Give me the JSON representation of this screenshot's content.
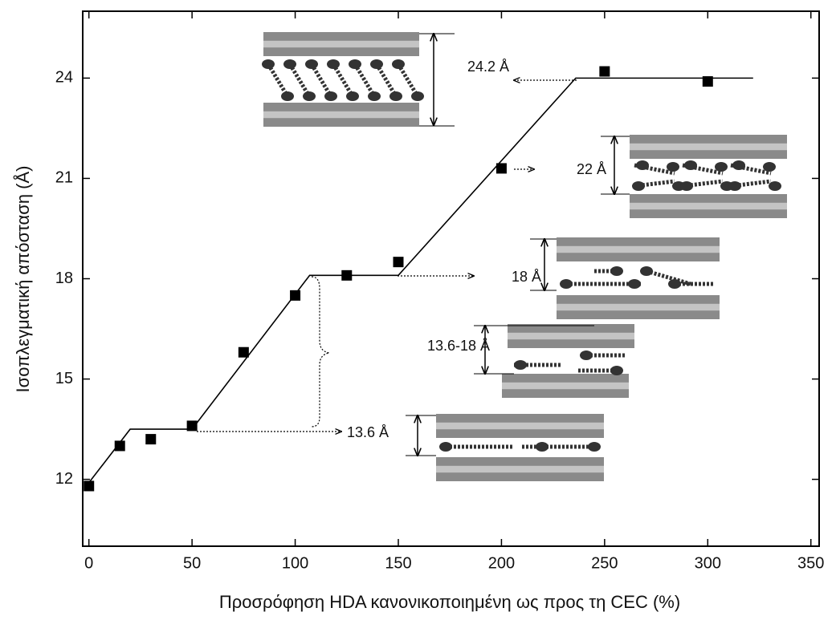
{
  "chart_data": {
    "type": "scatter",
    "xlabel": "Προσρόφηση HDA κανονικοποιημένη ως προς τη CEC (%)",
    "ylabel": "Ισοπλεγματική απόσταση (Å)",
    "x": [
      0,
      15,
      30,
      50,
      75,
      100,
      125,
      150,
      200,
      250,
      300
    ],
    "y": [
      11.8,
      13.0,
      13.2,
      13.6,
      15.8,
      17.5,
      18.1,
      18.5,
      21.3,
      24.2,
      23.9
    ],
    "color": "#000000",
    "fit_line": {
      "x": [
        0,
        20,
        50,
        107,
        150,
        236,
        322
      ],
      "y": [
        11.9,
        13.5,
        13.5,
        18.1,
        18.1,
        24,
        24
      ],
      "color": "#000000"
    },
    "xlim": [
      -3,
      354
    ],
    "ylim": [
      10,
      26
    ],
    "xticks": [
      0,
      50,
      100,
      150,
      200,
      250,
      300,
      350
    ],
    "yticks": [
      12,
      15,
      18,
      21,
      24
    ],
    "annotations": [
      "24.2 Å",
      "22 Å",
      "18 Å",
      "13.6-18 Å",
      "13.6 Å"
    ]
  }
}
